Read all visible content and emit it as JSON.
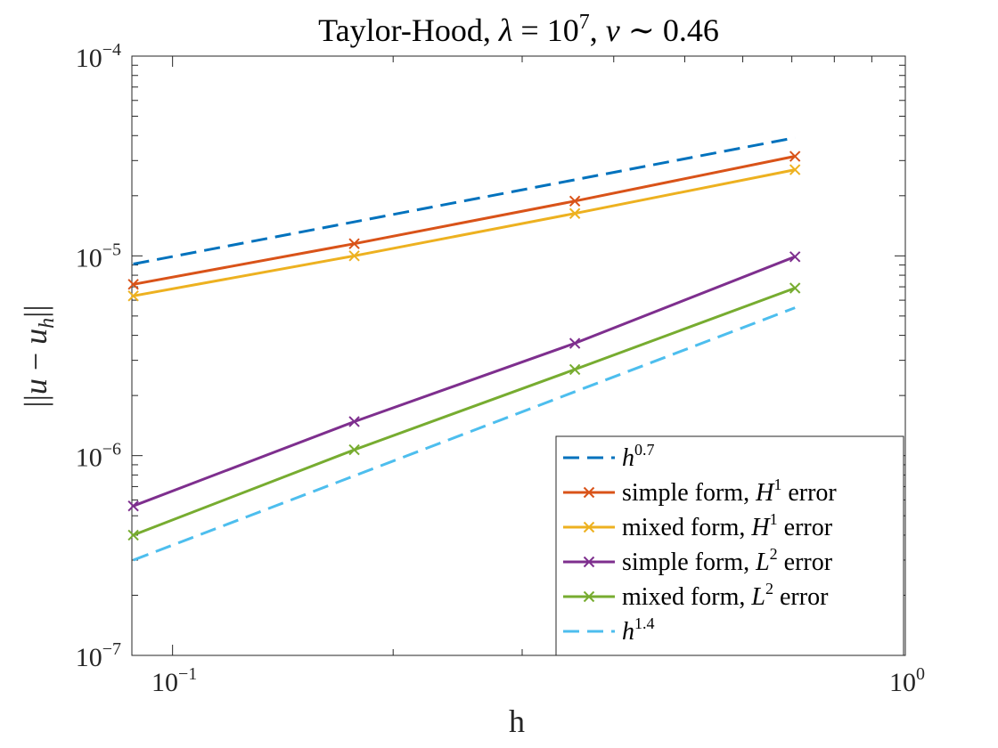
{
  "chart_data": {
    "type": "line",
    "title_parts": [
      "Taylor-Hood, ",
      "λ",
      " = 10",
      "7",
      ", ",
      "ν",
      " ∼ 0.46"
    ],
    "xlabel": "h",
    "ylabel_parts": [
      "||",
      "u",
      " − ",
      "u",
      "h",
      "||"
    ],
    "xscale": "log",
    "yscale": "log",
    "xlim": [
      0.088,
      1
    ],
    "ylim": [
      1e-07,
      0.0001
    ],
    "grid": false,
    "legend_position": "bottom-right",
    "x_ticks": [
      {
        "base": "10",
        "exp": "−1",
        "value": 0.1
      },
      {
        "base": "10",
        "exp": "0",
        "value": 1
      }
    ],
    "y_ticks": [
      {
        "base": "10",
        "exp": "−4",
        "value": 0.0001
      },
      {
        "base": "10",
        "exp": "−5",
        "value": 1e-05
      },
      {
        "base": "10",
        "exp": "−6",
        "value": 1e-06
      },
      {
        "base": "10",
        "exp": "−7",
        "value": 1e-07
      }
    ],
    "series": [
      {
        "key": "h07",
        "label_pre": "h",
        "label_sup": "0.7",
        "label_post": "",
        "color": "#0072BD",
        "dash": "dashed",
        "marker": "none",
        "x": [
          0.0884,
          0.707
        ],
        "y": [
          9.1e-06,
          3.9e-05
        ]
      },
      {
        "key": "simple_h1",
        "label_pre": "simple form, ",
        "label_italic": "H",
        "label_sup": "1",
        "label_post": " error",
        "color": "#D95319",
        "dash": "solid",
        "marker": "x",
        "x": [
          0.0884,
          0.177,
          0.354,
          0.707
        ],
        "y": [
          7.2e-06,
          1.15e-05,
          1.88e-05,
          3.15e-05
        ]
      },
      {
        "key": "mixed_h1",
        "label_pre": "mixed form, ",
        "label_italic": "H",
        "label_sup": "1",
        "label_post": " error",
        "color": "#EDB120",
        "dash": "solid",
        "marker": "x",
        "x": [
          0.0884,
          0.177,
          0.354,
          0.707
        ],
        "y": [
          6.3e-06,
          1e-05,
          1.63e-05,
          2.7e-05
        ]
      },
      {
        "key": "simple_l2",
        "label_pre": "simple form, ",
        "label_italic": "L",
        "label_sup": "2",
        "label_post": " error",
        "color": "#7E2F8E",
        "dash": "solid",
        "marker": "x",
        "x": [
          0.0884,
          0.177,
          0.354,
          0.707
        ],
        "y": [
          5.6e-07,
          1.48e-06,
          3.65e-06,
          9.9e-06
        ]
      },
      {
        "key": "mixed_l2",
        "label_pre": "mixed form, ",
        "label_italic": "L",
        "label_sup": "2",
        "label_post": " error",
        "color": "#77AC30",
        "dash": "solid",
        "marker": "x",
        "x": [
          0.0884,
          0.177,
          0.354,
          0.707
        ],
        "y": [
          4e-07,
          1.07e-06,
          2.7e-06,
          6.9e-06
        ]
      },
      {
        "key": "h14",
        "label_pre": "h",
        "label_sup": "1.4",
        "label_post": "",
        "color": "#4DBEEE",
        "dash": "dashed",
        "marker": "none",
        "x": [
          0.0884,
          0.707
        ],
        "y": [
          3e-07,
          5.5e-06
        ]
      }
    ]
  }
}
